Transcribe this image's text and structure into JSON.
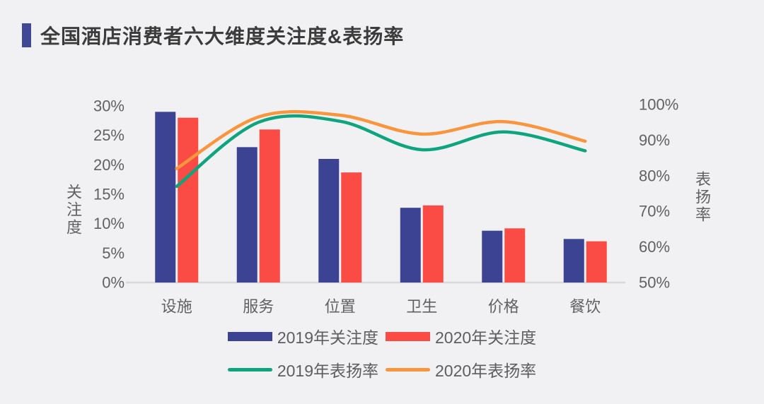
{
  "page": {
    "background": "#f1f1f3"
  },
  "header": {
    "title": "全国酒店消费者六大维度关注度&表扬率",
    "accent_color": "#3f4796"
  },
  "chart_data": {
    "type": "combo-bar-line",
    "title": "全国酒店消费者六大维度关注度&表扬率",
    "categories": [
      "设施",
      "服务",
      "位置",
      "卫生",
      "价格",
      "餐饮"
    ],
    "bar_series": [
      {
        "name": "2019年关注度",
        "axis": "left",
        "color": "#3d4393",
        "values": [
          29.0,
          23.0,
          21.0,
          12.7,
          8.8,
          7.4
        ]
      },
      {
        "name": "2020年关注度",
        "axis": "left",
        "color": "#fa4b45",
        "values": [
          28.0,
          26.0,
          18.7,
          13.1,
          9.2,
          7.0
        ]
      }
    ],
    "line_series": [
      {
        "name": "2019年表扬率",
        "axis": "right",
        "color": "#0ea57e",
        "values": [
          77.0,
          95.0,
          95.3,
          87.3,
          92.3,
          87.0
        ]
      },
      {
        "name": "2020年表扬率",
        "axis": "right",
        "color": "#f9953c",
        "values": [
          82.0,
          96.5,
          97.0,
          91.7,
          95.2,
          89.7
        ]
      }
    ],
    "left_axis": {
      "title": "关注度",
      "min": 0,
      "max": 30,
      "tick_labels": [
        "30%",
        "25%",
        "20%",
        "15%",
        "10%",
        "5%",
        "0%"
      ]
    },
    "right_axis": {
      "title": "表扬率",
      "min": 50,
      "max": 100,
      "tick_labels": [
        "100%",
        "90%",
        "80%",
        "70%",
        "60%",
        "50%"
      ]
    },
    "grid": "off",
    "legend_position": "bottom",
    "legend_rows": [
      [
        {
          "label": "2019年关注度",
          "swatch": "bar",
          "color": "#3d4393"
        },
        {
          "label": "2020年关注度",
          "swatch": "bar",
          "color": "#fa4b45"
        }
      ],
      [
        {
          "label": "2019年表扬率",
          "swatch": "line",
          "color": "#0ea57e"
        },
        {
          "label": "2020年表扬率",
          "swatch": "line",
          "color": "#f9953c"
        }
      ]
    ],
    "text_color": "#616161",
    "axis_line_color": "#d9d9d9"
  }
}
